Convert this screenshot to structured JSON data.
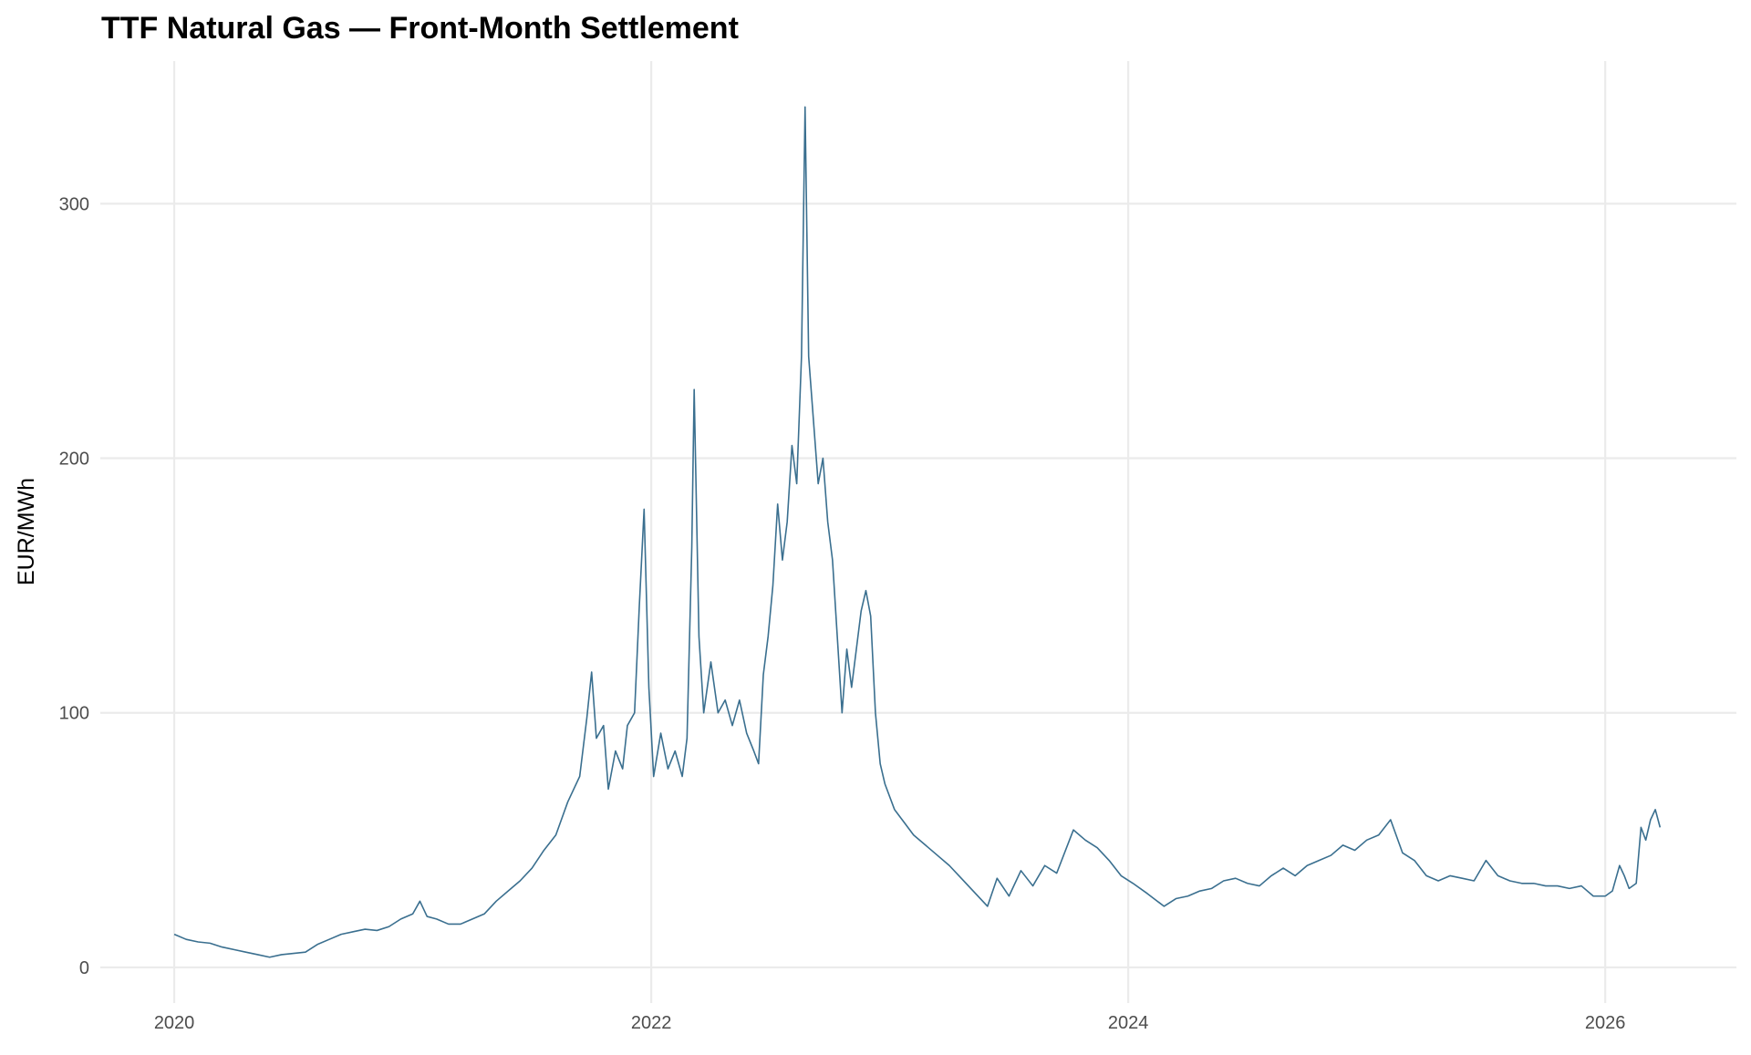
{
  "chart_data": {
    "type": "line",
    "title": "TTF Natural Gas — Front-Month Settlement",
    "y_label": "EUR/MWh",
    "xlim": [
      2019.69,
      2026.55
    ],
    "xticks": [
      2020,
      2022,
      2024,
      2026
    ],
    "ylim": [
      -14,
      356
    ],
    "yticks": [
      0,
      100,
      200,
      300
    ],
    "grid": true,
    "x": [
      2020.0,
      2020.05,
      2020.1,
      2020.15,
      2020.2,
      2020.25,
      2020.3,
      2020.35,
      2020.4,
      2020.45,
      2020.5,
      2020.55,
      2020.6,
      2020.65,
      2020.7,
      2020.75,
      2020.8,
      2020.85,
      2020.9,
      2020.95,
      2021.0,
      2021.03,
      2021.06,
      2021.1,
      2021.15,
      2021.2,
      2021.25,
      2021.3,
      2021.35,
      2021.4,
      2021.45,
      2021.5,
      2021.55,
      2021.6,
      2021.65,
      2021.7,
      2021.73,
      2021.75,
      2021.77,
      2021.8,
      2021.82,
      2021.85,
      2021.88,
      2021.9,
      2021.93,
      2021.95,
      2021.97,
      2021.99,
      2022.01,
      2022.04,
      2022.07,
      2022.1,
      2022.13,
      2022.15,
      2022.17,
      2022.18,
      2022.2,
      2022.22,
      2022.25,
      2022.28,
      2022.31,
      2022.34,
      2022.37,
      2022.4,
      2022.43,
      2022.45,
      2022.47,
      2022.49,
      2022.51,
      2022.53,
      2022.55,
      2022.57,
      2022.59,
      2022.61,
      2022.63,
      2022.645,
      2022.66,
      2022.68,
      2022.7,
      2022.72,
      2022.74,
      2022.76,
      2022.78,
      2022.8,
      2022.82,
      2022.84,
      2022.86,
      2022.88,
      2022.9,
      2022.92,
      2022.94,
      2022.96,
      2022.98,
      2023.02,
      2023.06,
      2023.1,
      2023.15,
      2023.2,
      2023.25,
      2023.3,
      2023.35,
      2023.41,
      2023.45,
      2023.5,
      2023.55,
      2023.6,
      2023.65,
      2023.7,
      2023.77,
      2023.82,
      2023.87,
      2023.92,
      2023.97,
      2024.02,
      2024.08,
      2024.15,
      2024.2,
      2024.25,
      2024.3,
      2024.35,
      2024.4,
      2024.45,
      2024.5,
      2024.55,
      2024.6,
      2024.65,
      2024.7,
      2024.75,
      2024.8,
      2024.85,
      2024.9,
      2024.95,
      2025.0,
      2025.05,
      2025.1,
      2025.15,
      2025.2,
      2025.25,
      2025.3,
      2025.35,
      2025.4,
      2025.45,
      2025.5,
      2025.55,
      2025.6,
      2025.65,
      2025.7,
      2025.75,
      2025.8,
      2025.85,
      2025.9,
      2025.95,
      2026.0,
      2026.03,
      2026.06,
      2026.08,
      2026.1,
      2026.13,
      2026.15,
      2026.17,
      2026.19,
      2026.21,
      2026.23
    ],
    "series": [
      {
        "color": "#3a6f8f",
        "values": [
          13,
          11,
          10,
          9.5,
          8,
          7,
          6,
          5,
          4,
          5,
          5.5,
          6,
          9,
          11,
          13,
          14,
          15,
          14.5,
          16,
          19,
          21,
          26,
          20,
          19,
          17,
          17,
          19,
          21,
          26,
          30,
          34,
          39,
          46,
          52,
          65,
          75,
          98,
          116,
          90,
          95,
          70,
          85,
          78,
          95,
          100,
          142,
          180,
          110,
          75,
          92,
          78,
          85,
          75,
          90,
          165,
          227,
          130,
          100,
          120,
          100,
          105,
          95,
          105,
          92,
          85,
          80,
          115,
          130,
          150,
          182,
          160,
          175,
          205,
          190,
          240,
          338,
          240,
          215,
          190,
          200,
          175,
          160,
          130,
          100,
          125,
          110,
          125,
          140,
          148,
          138,
          100,
          80,
          72,
          62,
          57,
          52,
          48,
          44,
          40,
          35,
          30,
          24,
          35,
          28,
          38,
          32,
          40,
          37,
          54,
          50,
          47,
          42,
          36,
          33,
          29,
          24,
          27,
          28,
          30,
          31,
          34,
          35,
          33,
          32,
          36,
          39,
          36,
          40,
          42,
          44,
          48,
          46,
          50,
          52,
          58,
          45,
          42,
          36,
          34,
          36,
          35,
          34,
          42,
          36,
          34,
          33,
          33,
          32,
          32,
          31,
          32,
          28,
          28,
          30,
          40,
          36,
          31,
          33,
          55,
          50,
          58,
          62,
          55
        ]
      }
    ]
  }
}
